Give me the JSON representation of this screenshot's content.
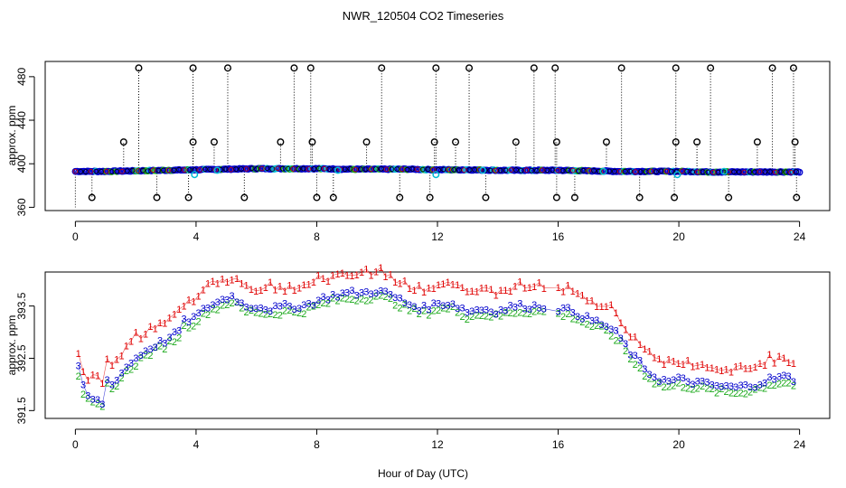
{
  "chart_data": {
    "title": "NWR_120504  CO2 Timeseries",
    "xlabel": "Hour of Day (UTC)",
    "x_ticks": [
      0,
      4,
      8,
      12,
      16,
      20,
      24
    ],
    "xlim": [
      -1,
      25
    ],
    "panels": [
      {
        "type": "scatter",
        "ylabel": "approx. ppm",
        "ylim": [
          357,
          494
        ],
        "y_ticks": [
          360,
          400,
          440,
          480
        ],
        "baseline": [
          [
            0,
            393
          ],
          [
            1,
            393
          ],
          [
            2,
            393.5
          ],
          [
            3,
            394
          ],
          [
            4,
            394.5
          ],
          [
            5,
            395
          ],
          [
            6,
            395.5
          ],
          [
            7,
            395.5
          ],
          [
            8,
            395.5
          ],
          [
            9,
            395
          ],
          [
            10,
            395
          ],
          [
            11,
            395
          ],
          [
            12,
            394.5
          ],
          [
            13,
            394.5
          ],
          [
            14,
            394
          ],
          [
            15,
            394
          ],
          [
            16,
            394
          ],
          [
            17,
            393.5
          ],
          [
            18,
            393
          ],
          [
            19,
            393
          ],
          [
            20,
            393
          ],
          [
            21,
            392.5
          ],
          [
            22,
            392.5
          ],
          [
            23,
            392.5
          ],
          [
            24,
            392.5
          ]
        ],
        "cyan_points": [
          [
            3.95,
            390
          ],
          [
            11.95,
            390
          ],
          [
            19.95,
            390
          ],
          [
            4.7,
            394
          ],
          [
            8.7,
            394
          ],
          [
            13.5,
            394
          ],
          [
            17.5,
            393
          ],
          [
            21.5,
            393
          ]
        ],
        "spikes_high": [
          2.1,
          3.9,
          5.05,
          7.25,
          7.8,
          10.15,
          11.95,
          13.05,
          15.2,
          15.9,
          18.1,
          19.9,
          21.05,
          23.1,
          23.8
        ],
        "spikes_mid": [
          1.6,
          3.9,
          4.6,
          6.8,
          7.85,
          9.65,
          11.9,
          12.6,
          14.6,
          15.95,
          17.6,
          19.9,
          20.6,
          22.6,
          23.85
        ],
        "spikes_low": [
          0.55,
          2.7,
          3.75,
          5.6,
          8.0,
          8.55,
          10.75,
          11.75,
          13.6,
          15.95,
          16.55,
          18.7,
          19.85,
          21.65,
          23.9
        ],
        "high_value": 488,
        "mid_value": 420,
        "low_value": 369
      },
      {
        "type": "scatter",
        "ylabel": "approx. ppm",
        "ylim": [
          391.35,
          394.15
        ],
        "y_ticks": [
          391.5,
          392.5,
          393.5
        ],
        "marker_labels": [
          "1",
          "2",
          "3"
        ],
        "series": [
          {
            "name": "1",
            "color": "#e00000",
            "offset": 0.35
          },
          {
            "name": "2",
            "color": "#1aa81a",
            "offset": -0.1
          },
          {
            "name": "3",
            "color": "#0000cc",
            "offset": 0.0
          }
        ],
        "profile": [
          [
            0.1,
            392.3
          ],
          [
            0.3,
            391.85
          ],
          [
            0.6,
            391.7
          ],
          [
            0.9,
            391.65
          ],
          [
            1.0,
            392.3
          ],
          [
            1.1,
            391.9
          ],
          [
            1.4,
            392.15
          ],
          [
            1.8,
            392.4
          ],
          [
            2.2,
            392.6
          ],
          [
            2.6,
            392.75
          ],
          [
            3.0,
            392.85
          ],
          [
            3.4,
            393.0
          ],
          [
            3.6,
            393.2
          ],
          [
            4.0,
            393.3
          ],
          [
            4.4,
            393.5
          ],
          [
            4.8,
            393.6
          ],
          [
            5.2,
            393.7
          ],
          [
            5.6,
            393.5
          ],
          [
            6.0,
            393.5
          ],
          [
            6.5,
            393.45
          ],
          [
            7.0,
            393.5
          ],
          [
            7.5,
            393.5
          ],
          [
            8.0,
            393.6
          ],
          [
            8.5,
            393.7
          ],
          [
            9.0,
            393.75
          ],
          [
            9.5,
            393.75
          ],
          [
            10.0,
            393.8
          ],
          [
            10.5,
            393.7
          ],
          [
            11.0,
            393.55
          ],
          [
            11.5,
            393.45
          ],
          [
            12.0,
            393.55
          ],
          [
            12.5,
            393.55
          ],
          [
            13.0,
            393.4
          ],
          [
            13.5,
            393.45
          ],
          [
            14.0,
            393.4
          ],
          [
            14.5,
            393.5
          ],
          [
            15.0,
            393.5
          ],
          [
            15.5,
            393.5
          ],
          [
            16.0,
            393.45
          ],
          [
            16.5,
            393.4
          ],
          [
            17.0,
            393.25
          ],
          [
            17.5,
            393.15
          ],
          [
            18.0,
            392.95
          ],
          [
            18.4,
            392.6
          ],
          [
            18.8,
            392.35
          ],
          [
            19.2,
            392.15
          ],
          [
            19.6,
            392.05
          ],
          [
            20.0,
            392.1
          ],
          [
            20.5,
            392.05
          ],
          [
            21.0,
            392.0
          ],
          [
            21.5,
            391.95
          ],
          [
            22.0,
            391.95
          ],
          [
            22.5,
            392.0
          ],
          [
            23.0,
            392.1
          ],
          [
            23.5,
            392.15
          ],
          [
            23.8,
            392.1
          ]
        ]
      }
    ]
  }
}
